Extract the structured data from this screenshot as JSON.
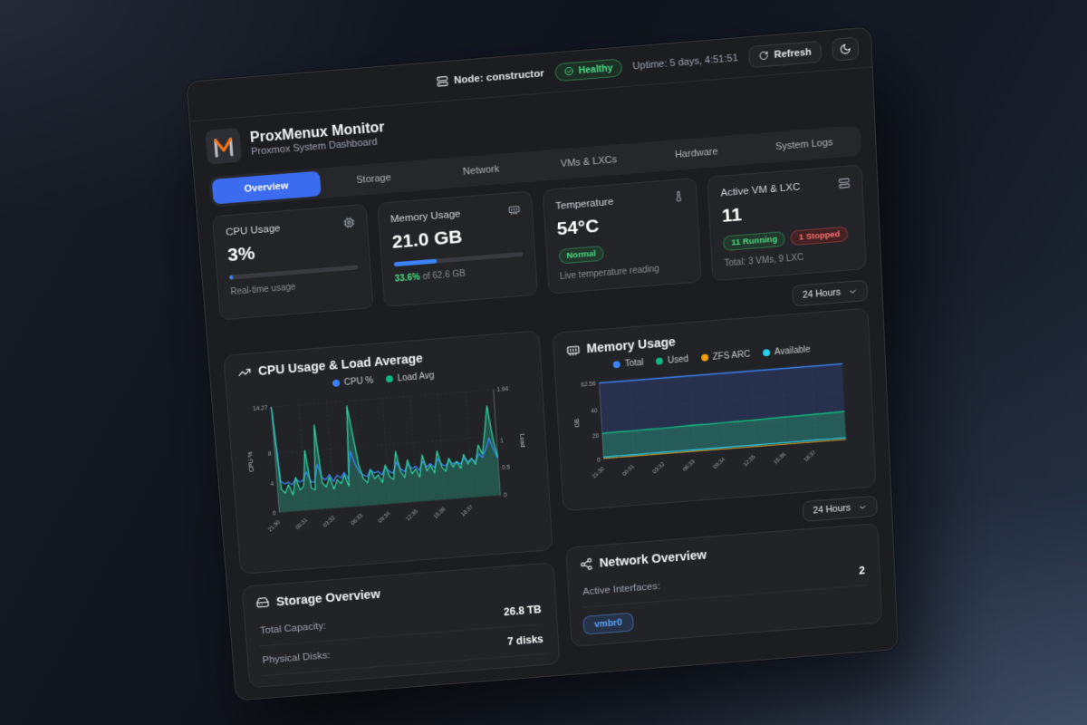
{
  "topbar": {
    "node_label": "Node: constructor",
    "health_status": "Healthy",
    "uptime": "Uptime: 5 days, 4:51:51",
    "refresh_label": "Refresh"
  },
  "header": {
    "title": "ProxMenux Monitor",
    "subtitle": "Proxmox System Dashboard"
  },
  "tabs": [
    {
      "id": "overview",
      "label": "Overview",
      "active": true
    },
    {
      "id": "storage",
      "label": "Storage",
      "active": false
    },
    {
      "id": "network",
      "label": "Network",
      "active": false
    },
    {
      "id": "vms-lxcs",
      "label": "VMs & LXCs",
      "active": false
    },
    {
      "id": "hardware",
      "label": "Hardware",
      "active": false
    },
    {
      "id": "system-logs",
      "label": "System Logs",
      "active": false
    }
  ],
  "stats": {
    "cpu": {
      "label": "CPU Usage",
      "value": "3%",
      "percent": 3,
      "caption": "Real-time usage"
    },
    "memory": {
      "label": "Memory Usage",
      "value": "21.0 GB",
      "percent": 33.6,
      "caption_percent": "33.6%",
      "caption_rest": " of 62.6 GB"
    },
    "temperature": {
      "label": "Temperature",
      "value": "54°C",
      "badge": "Normal",
      "caption": "Live temperature reading"
    },
    "vms": {
      "label": "Active VM & LXC",
      "value": "11",
      "running_badge": "11 Running",
      "stopped_badge": "1 Stopped",
      "caption": "Total: 3 VMs, 9 LXC"
    }
  },
  "time_range": {
    "selected": "24 Hours"
  },
  "storage_card": {
    "title": "Storage Overview",
    "rows": [
      {
        "label": "Total Capacity:",
        "value": "26.8 TB"
      },
      {
        "label": "Physical Disks:",
        "value": "7 disks"
      }
    ]
  },
  "network_card": {
    "title": "Network Overview",
    "rows": [
      {
        "label": "Active Interfaces:",
        "value": "2"
      }
    ],
    "interface_badge": "vmbr0"
  },
  "colors": {
    "accent": "#3b82f6",
    "green": "#10b981",
    "orange": "#f59e0b",
    "cyan": "#22d3ee",
    "text_green": "#4ade80",
    "red": "#f87171"
  },
  "chart_data": [
    {
      "type": "area",
      "title": "CPU Usage & Load Average",
      "x_labels": [
        "21:30",
        "00:31",
        "03:32",
        "06:33",
        "09:34",
        "12:35",
        "15:36",
        "18:37"
      ],
      "y_left": {
        "label": "CPU %",
        "ticks": [
          0,
          4,
          8,
          14.27
        ],
        "max": 14.27
      },
      "y_right": {
        "label": "Load",
        "ticks": [
          0,
          0.5,
          1,
          1.94
        ],
        "max": 1.94
      },
      "legend": [
        {
          "name": "CPU %",
          "color": "#3b82f6"
        },
        {
          "name": "Load Avg",
          "color": "#10b981"
        }
      ],
      "series": [
        {
          "name": "CPU %",
          "axis": "left",
          "color": "#3b82f6",
          "width": 1.4,
          "values": [
            14.27,
            4.2,
            3.8,
            4.0,
            3.6,
            4.4,
            3.9,
            4.1,
            5.2,
            3.8,
            3.7,
            6.1,
            4.3,
            3.9,
            4.6,
            3.6,
            4.4,
            4.0,
            4.7,
            3.8,
            7.5,
            5.8,
            4.6,
            4.2,
            3.9,
            4.8,
            4.3,
            4.5,
            4.0,
            5.0,
            4.4,
            4.1,
            5.6,
            4.6,
            4.2,
            5.2,
            4.5,
            4.8,
            4.2,
            5.4,
            4.6,
            5.0,
            4.4,
            5.6,
            4.8,
            4.5,
            5.2,
            4.7,
            5.0,
            4.6,
            5.4,
            4.9,
            5.1,
            4.8,
            5.8,
            5.3,
            6.5,
            7.8,
            6.2,
            5.0
          ]
        },
        {
          "name": "Load Avg",
          "axis": "right",
          "color": "#2fd6a5",
          "width": 1.3,
          "fill_to": "baseline",
          "fill_color": "rgba(45,212,170,0.28)",
          "values": [
            1.94,
            0.42,
            0.35,
            0.5,
            0.3,
            0.62,
            0.38,
            0.45,
            1.1,
            0.4,
            0.36,
            1.55,
            0.48,
            0.4,
            0.58,
            0.35,
            0.52,
            0.44,
            0.6,
            0.38,
            1.85,
            1.3,
            0.75,
            0.5,
            0.42,
            0.66,
            0.48,
            0.55,
            0.4,
            0.72,
            0.5,
            0.44,
            0.95,
            0.58,
            0.46,
            0.78,
            0.52,
            0.6,
            0.45,
            0.85,
            0.55,
            0.65,
            0.5,
            0.9,
            0.6,
            0.52,
            0.75,
            0.58,
            0.68,
            0.55,
            0.8,
            0.62,
            0.72,
            0.6,
            0.95,
            0.78,
            1.2,
            1.65,
            1.05,
            0.7
          ]
        }
      ]
    },
    {
      "type": "area",
      "title": "Memory Usage",
      "x_labels": [
        "21:30",
        "00:31",
        "03:32",
        "06:33",
        "09:34",
        "12:35",
        "15:36",
        "18:37"
      ],
      "y_left": {
        "label": "GB",
        "ticks": [
          0,
          20,
          40,
          62.56
        ],
        "max": 62.56
      },
      "legend": [
        {
          "name": "Total",
          "color": "#3b82f6"
        },
        {
          "name": "Used",
          "color": "#10b981"
        },
        {
          "name": "ZFS ARC",
          "color": "#f59e0b"
        },
        {
          "name": "Available",
          "color": "#22d3ee"
        }
      ],
      "series": [
        {
          "name": "Total",
          "axis": "left",
          "color": "#3b82f6",
          "width": 1.6,
          "fill_to": "Used",
          "fill_color": "rgba(44,62,112,0.55)",
          "values": [
            62.56,
            62.56,
            62.56,
            62.56,
            62.56,
            62.56,
            62.56,
            62.56,
            62.56,
            62.56,
            62.56,
            62.56,
            62.56,
            62.56,
            62.56,
            62.56,
            62.56
          ]
        },
        {
          "name": "Used",
          "axis": "left",
          "color": "#10b981",
          "width": 1.5,
          "fill_to": "Available",
          "fill_color": "rgba(45,200,180,0.35)",
          "values": [
            21.2,
            21.4,
            21.3,
            21.6,
            21.5,
            21.8,
            22.0,
            21.9,
            22.2,
            22.4,
            22.3,
            22.6,
            22.8,
            23.0,
            23.2,
            23.4,
            23.5
          ]
        },
        {
          "name": "ZFS ARC",
          "axis": "left",
          "color": "#f59e0b",
          "width": 1.0,
          "values": [
            0.6,
            0.6,
            0.6,
            0.6,
            0.6,
            0.6,
            0.6,
            0.6,
            0.6,
            0.6,
            0.6,
            0.6,
            0.6,
            0.6,
            0.6,
            0.6,
            0.6
          ]
        },
        {
          "name": "Available",
          "axis": "left",
          "color": "#22d3ee",
          "width": 1.4,
          "values": [
            1.6,
            1.7,
            1.65,
            1.7,
            1.75,
            1.7,
            1.8,
            1.75,
            1.8,
            1.85,
            1.8,
            1.9,
            1.85,
            1.9,
            1.95,
            1.9,
            2.0
          ]
        }
      ]
    }
  ]
}
